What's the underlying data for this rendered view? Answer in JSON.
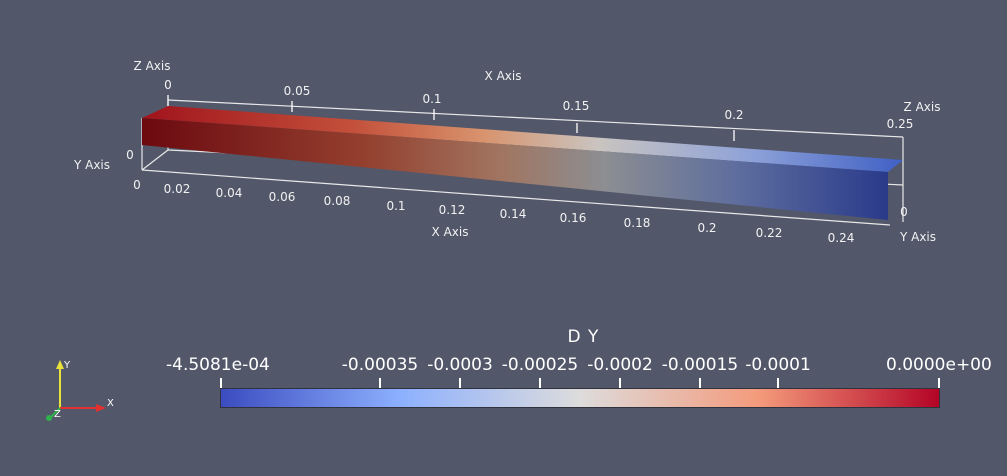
{
  "viewport": {
    "x_axis_title_top": "X Axis",
    "x_axis_title_bottom": "X Axis",
    "y_axis_title_left": "Y Axis",
    "y_axis_title_right": "Y Axis",
    "z_axis_title_left": "Z Axis",
    "z_axis_title_right": "Z Axis",
    "top_x_ticks": [
      "0",
      "0.05",
      "0.1",
      "0.15",
      "0.2",
      "0.25"
    ],
    "bottom_x_ticks": [
      "0",
      "0.02",
      "0.04",
      "0.06",
      "0.08",
      "0.1",
      "0.12",
      "0.14",
      "0.16",
      "0.18",
      "0.2",
      "0.22",
      "0.24"
    ],
    "y_tick_left": "0",
    "y_tick_right": "0",
    "beam_color_left": "#7a0a14",
    "beam_color_right": "#2d3f9c"
  },
  "colorbar": {
    "title": "D Y",
    "min_label": "-4.5081e-04",
    "max_label": "0.0000e+00",
    "tick_labels": [
      "-0.00035",
      "-0.0003",
      "-0.00025",
      "-0.0002",
      "-0.00015",
      "-0.0001"
    ],
    "colors": [
      "#3b4cc0",
      "#8db0fe",
      "#dddcdc",
      "#f49a7b",
      "#b40426"
    ]
  },
  "orientation": {
    "x_label": "X",
    "y_label": "Y",
    "z_label": "Z"
  }
}
